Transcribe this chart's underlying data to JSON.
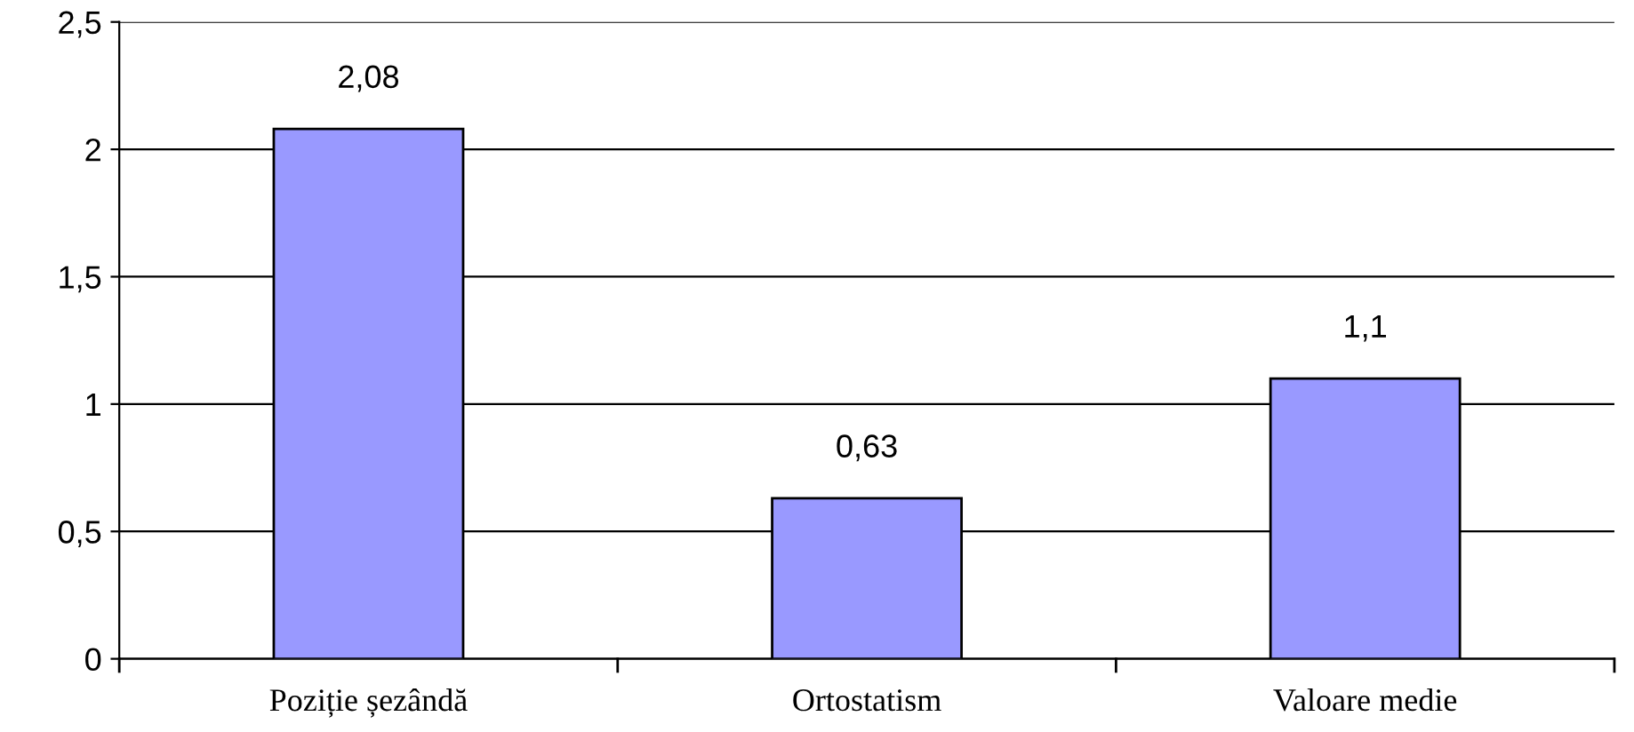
{
  "chart_data": {
    "type": "bar",
    "categories": [
      "Poziție șezândă",
      "Ortostatism",
      "Valoare medie"
    ],
    "values": [
      2.08,
      0.63,
      1.1
    ],
    "colors": [
      "#9999ff",
      "#9999ff",
      "#9999ff"
    ],
    "value_labels": [
      "2,08",
      "0,63",
      "1,1"
    ],
    "ylim": [
      0,
      2.5
    ],
    "yticks": [
      0,
      {
        "value": 0.5,
        "label": "0,5"
      },
      1,
      {
        "value": 1.5,
        "label": "1,5"
      },
      2,
      {
        "value": 2.5,
        "label": "2,5"
      }
    ],
    "grid": "y"
  }
}
